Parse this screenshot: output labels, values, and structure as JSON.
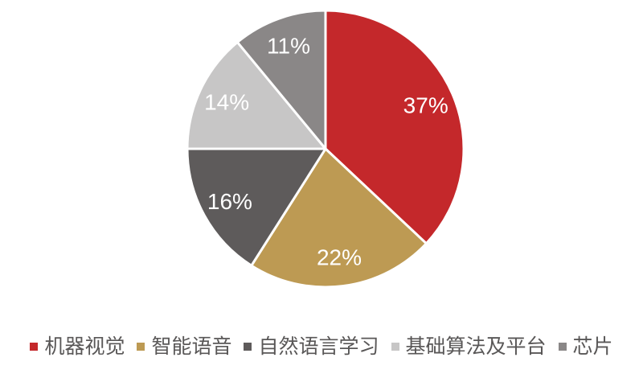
{
  "canvas": {
    "background": "#FFFFFF"
  },
  "chart_data": {
    "type": "pie",
    "title": "",
    "categories": [
      "机器视觉",
      "智能语音",
      "自然语言学习",
      "基础算法及平台",
      "芯片"
    ],
    "values": [
      37,
      22,
      16,
      14,
      11
    ],
    "data_labels": [
      "37%",
      "22%",
      "16%",
      "14%",
      "11%"
    ],
    "unit": "%",
    "colors": [
      "#C4282B",
      "#BD9A53",
      "#5E5B5B",
      "#C7C6C6",
      "#8A8787"
    ],
    "slice_border_color": "#FFFFFF",
    "data_label_color": "#FFFFFF",
    "start_angle_deg": 0,
    "direction": "clockwise",
    "legend_position": "bottom",
    "legend_text_color": "#595757"
  }
}
